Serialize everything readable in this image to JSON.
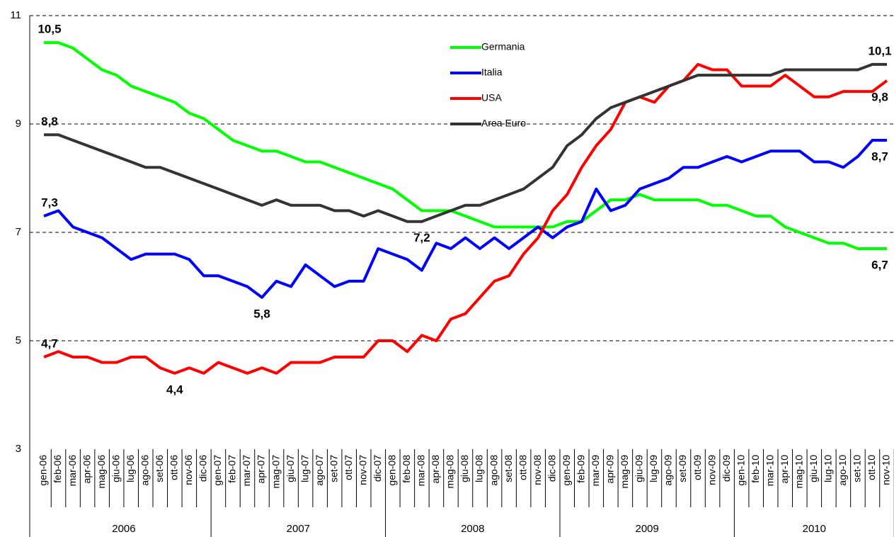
{
  "chart_data": {
    "type": "line",
    "categories": [
      "gen-06",
      "feb-06",
      "mar-06",
      "apr-06",
      "mag-06",
      "giu-06",
      "lug-06",
      "ago-06",
      "set-06",
      "ott-06",
      "nov-06",
      "dic-06",
      "gen-07",
      "feb-07",
      "mar-07",
      "apr-07",
      "mag-07",
      "giu-07",
      "lug-07",
      "ago-07",
      "set-07",
      "ott-07",
      "nov-07",
      "dic-07",
      "gen-08",
      "feb-08",
      "mar-08",
      "apr-08",
      "mag-08",
      "giu-08",
      "lug-08",
      "ago-08",
      "set-08",
      "ott-08",
      "nov-08",
      "dic-08",
      "gen-09",
      "feb-09",
      "mar-09",
      "apr-09",
      "mag-09",
      "giu-09",
      "lug-09",
      "ago-09",
      "set-09",
      "ott-09",
      "nov-09",
      "dic-09",
      "gen-10",
      "feb-10",
      "mar-10",
      "apr-10",
      "mag-10",
      "giu-10",
      "lug-10",
      "ago-10",
      "set-10",
      "ott-10",
      "nov-10"
    ],
    "years": [
      "2006",
      "2007",
      "2008",
      "2009",
      "2010"
    ],
    "series": [
      {
        "name": "Germania",
        "color": "#00ff00",
        "values": [
          10.5,
          10.5,
          10.4,
          10.2,
          10.0,
          9.9,
          9.7,
          9.6,
          9.5,
          9.4,
          9.2,
          9.1,
          8.9,
          8.7,
          8.6,
          8.5,
          8.5,
          8.4,
          8.3,
          8.3,
          8.2,
          8.1,
          8.0,
          7.9,
          7.8,
          7.6,
          7.4,
          7.4,
          7.4,
          7.3,
          7.2,
          7.1,
          7.1,
          7.1,
          7.1,
          7.1,
          7.2,
          7.2,
          7.4,
          7.6,
          7.6,
          7.7,
          7.6,
          7.6,
          7.6,
          7.6,
          7.5,
          7.5,
          7.4,
          7.3,
          7.3,
          7.1,
          7.0,
          6.9,
          6.8,
          6.8,
          6.7,
          6.7,
          6.7
        ],
        "value_labels": [
          "10,5",
          null,
          null,
          null,
          null,
          null,
          null,
          null,
          null,
          null,
          null,
          null,
          null,
          null,
          null,
          null,
          null,
          null,
          null,
          null,
          null,
          null,
          null,
          null,
          null,
          null,
          null,
          null,
          null,
          null,
          null,
          null,
          null,
          null,
          null,
          null,
          null,
          null,
          null,
          null,
          null,
          null,
          null,
          null,
          null,
          null,
          null,
          null,
          null,
          null,
          null,
          null,
          null,
          null,
          null,
          null,
          null,
          null,
          "6,7"
        ]
      },
      {
        "name": "Italia",
        "color": "#0000ff",
        "values": [
          7.3,
          7.4,
          7.1,
          7.0,
          6.9,
          6.7,
          6.5,
          6.6,
          6.6,
          6.6,
          6.5,
          6.2,
          6.2,
          6.1,
          6.0,
          5.8,
          6.1,
          6.0,
          6.4,
          6.2,
          6.0,
          6.1,
          6.1,
          6.7,
          6.6,
          6.5,
          6.3,
          6.8,
          6.7,
          6.9,
          6.7,
          6.9,
          6.7,
          6.9,
          7.1,
          6.9,
          7.1,
          7.2,
          7.8,
          7.4,
          7.5,
          7.8,
          7.9,
          8.0,
          8.2,
          8.2,
          8.3,
          8.4,
          8.3,
          8.4,
          8.5,
          8.5,
          8.5,
          8.3,
          8.3,
          8.2,
          8.4,
          8.7,
          8.7
        ],
        "value_labels": [
          "7,3",
          null,
          null,
          null,
          null,
          null,
          null,
          null,
          null,
          null,
          null,
          null,
          null,
          null,
          null,
          "5,8",
          null,
          null,
          null,
          null,
          null,
          null,
          null,
          null,
          null,
          null,
          null,
          null,
          null,
          null,
          null,
          null,
          null,
          null,
          null,
          null,
          null,
          null,
          null,
          null,
          null,
          null,
          null,
          null,
          null,
          null,
          null,
          null,
          null,
          null,
          null,
          null,
          null,
          null,
          null,
          null,
          null,
          null,
          "8,7"
        ]
      },
      {
        "name": "USA",
        "color": "#ff0000",
        "values": [
          4.7,
          4.8,
          4.7,
          4.7,
          4.6,
          4.6,
          4.7,
          4.7,
          4.5,
          4.4,
          4.5,
          4.4,
          4.6,
          4.5,
          4.4,
          4.5,
          4.4,
          4.6,
          4.6,
          4.6,
          4.7,
          4.7,
          4.7,
          5.0,
          5.0,
          4.8,
          5.1,
          5.0,
          5.4,
          5.5,
          5.8,
          6.1,
          6.2,
          6.6,
          6.9,
          7.4,
          7.7,
          8.2,
          8.6,
          8.9,
          9.4,
          9.5,
          9.4,
          9.7,
          9.8,
          10.1,
          10.0,
          10.0,
          9.7,
          9.7,
          9.7,
          9.9,
          9.7,
          9.5,
          9.5,
          9.6,
          9.6,
          9.6,
          9.8
        ],
        "value_labels": [
          "4,7",
          null,
          null,
          null,
          null,
          null,
          null,
          null,
          null,
          "4,4",
          null,
          null,
          null,
          null,
          null,
          null,
          null,
          null,
          null,
          null,
          null,
          null,
          null,
          null,
          null,
          null,
          null,
          null,
          null,
          null,
          null,
          null,
          null,
          null,
          null,
          null,
          null,
          null,
          null,
          null,
          null,
          null,
          null,
          null,
          null,
          null,
          null,
          null,
          null,
          null,
          null,
          null,
          null,
          null,
          null,
          null,
          null,
          null,
          "9,8"
        ]
      },
      {
        "name": "Area Euro",
        "color": "#333333",
        "values": [
          8.8,
          8.8,
          8.7,
          8.6,
          8.5,
          8.4,
          8.3,
          8.2,
          8.2,
          8.1,
          8.0,
          7.9,
          7.8,
          7.7,
          7.6,
          7.5,
          7.6,
          7.5,
          7.5,
          7.5,
          7.4,
          7.4,
          7.3,
          7.4,
          7.3,
          7.2,
          7.2,
          7.3,
          7.4,
          7.5,
          7.5,
          7.6,
          7.7,
          7.8,
          8.0,
          8.2,
          8.6,
          8.8,
          9.1,
          9.3,
          9.4,
          9.5,
          9.6,
          9.7,
          9.8,
          9.9,
          9.9,
          9.9,
          9.9,
          9.9,
          9.9,
          10.0,
          10.0,
          10.0,
          10.0,
          10.0,
          10.0,
          10.1,
          10.1
        ],
        "value_labels": [
          "8,8",
          null,
          null,
          null,
          null,
          null,
          null,
          null,
          null,
          null,
          null,
          null,
          null,
          null,
          null,
          null,
          null,
          null,
          null,
          null,
          null,
          null,
          null,
          null,
          null,
          null,
          "7,2",
          null,
          null,
          null,
          null,
          null,
          null,
          null,
          null,
          null,
          null,
          null,
          null,
          null,
          null,
          null,
          null,
          null,
          null,
          null,
          null,
          null,
          null,
          null,
          null,
          null,
          null,
          null,
          null,
          null,
          null,
          null,
          "10,1"
        ]
      }
    ],
    "ylim": [
      3,
      11
    ],
    "yticks": [
      3,
      5,
      7,
      9,
      11
    ],
    "grid": true,
    "legend": "top"
  }
}
